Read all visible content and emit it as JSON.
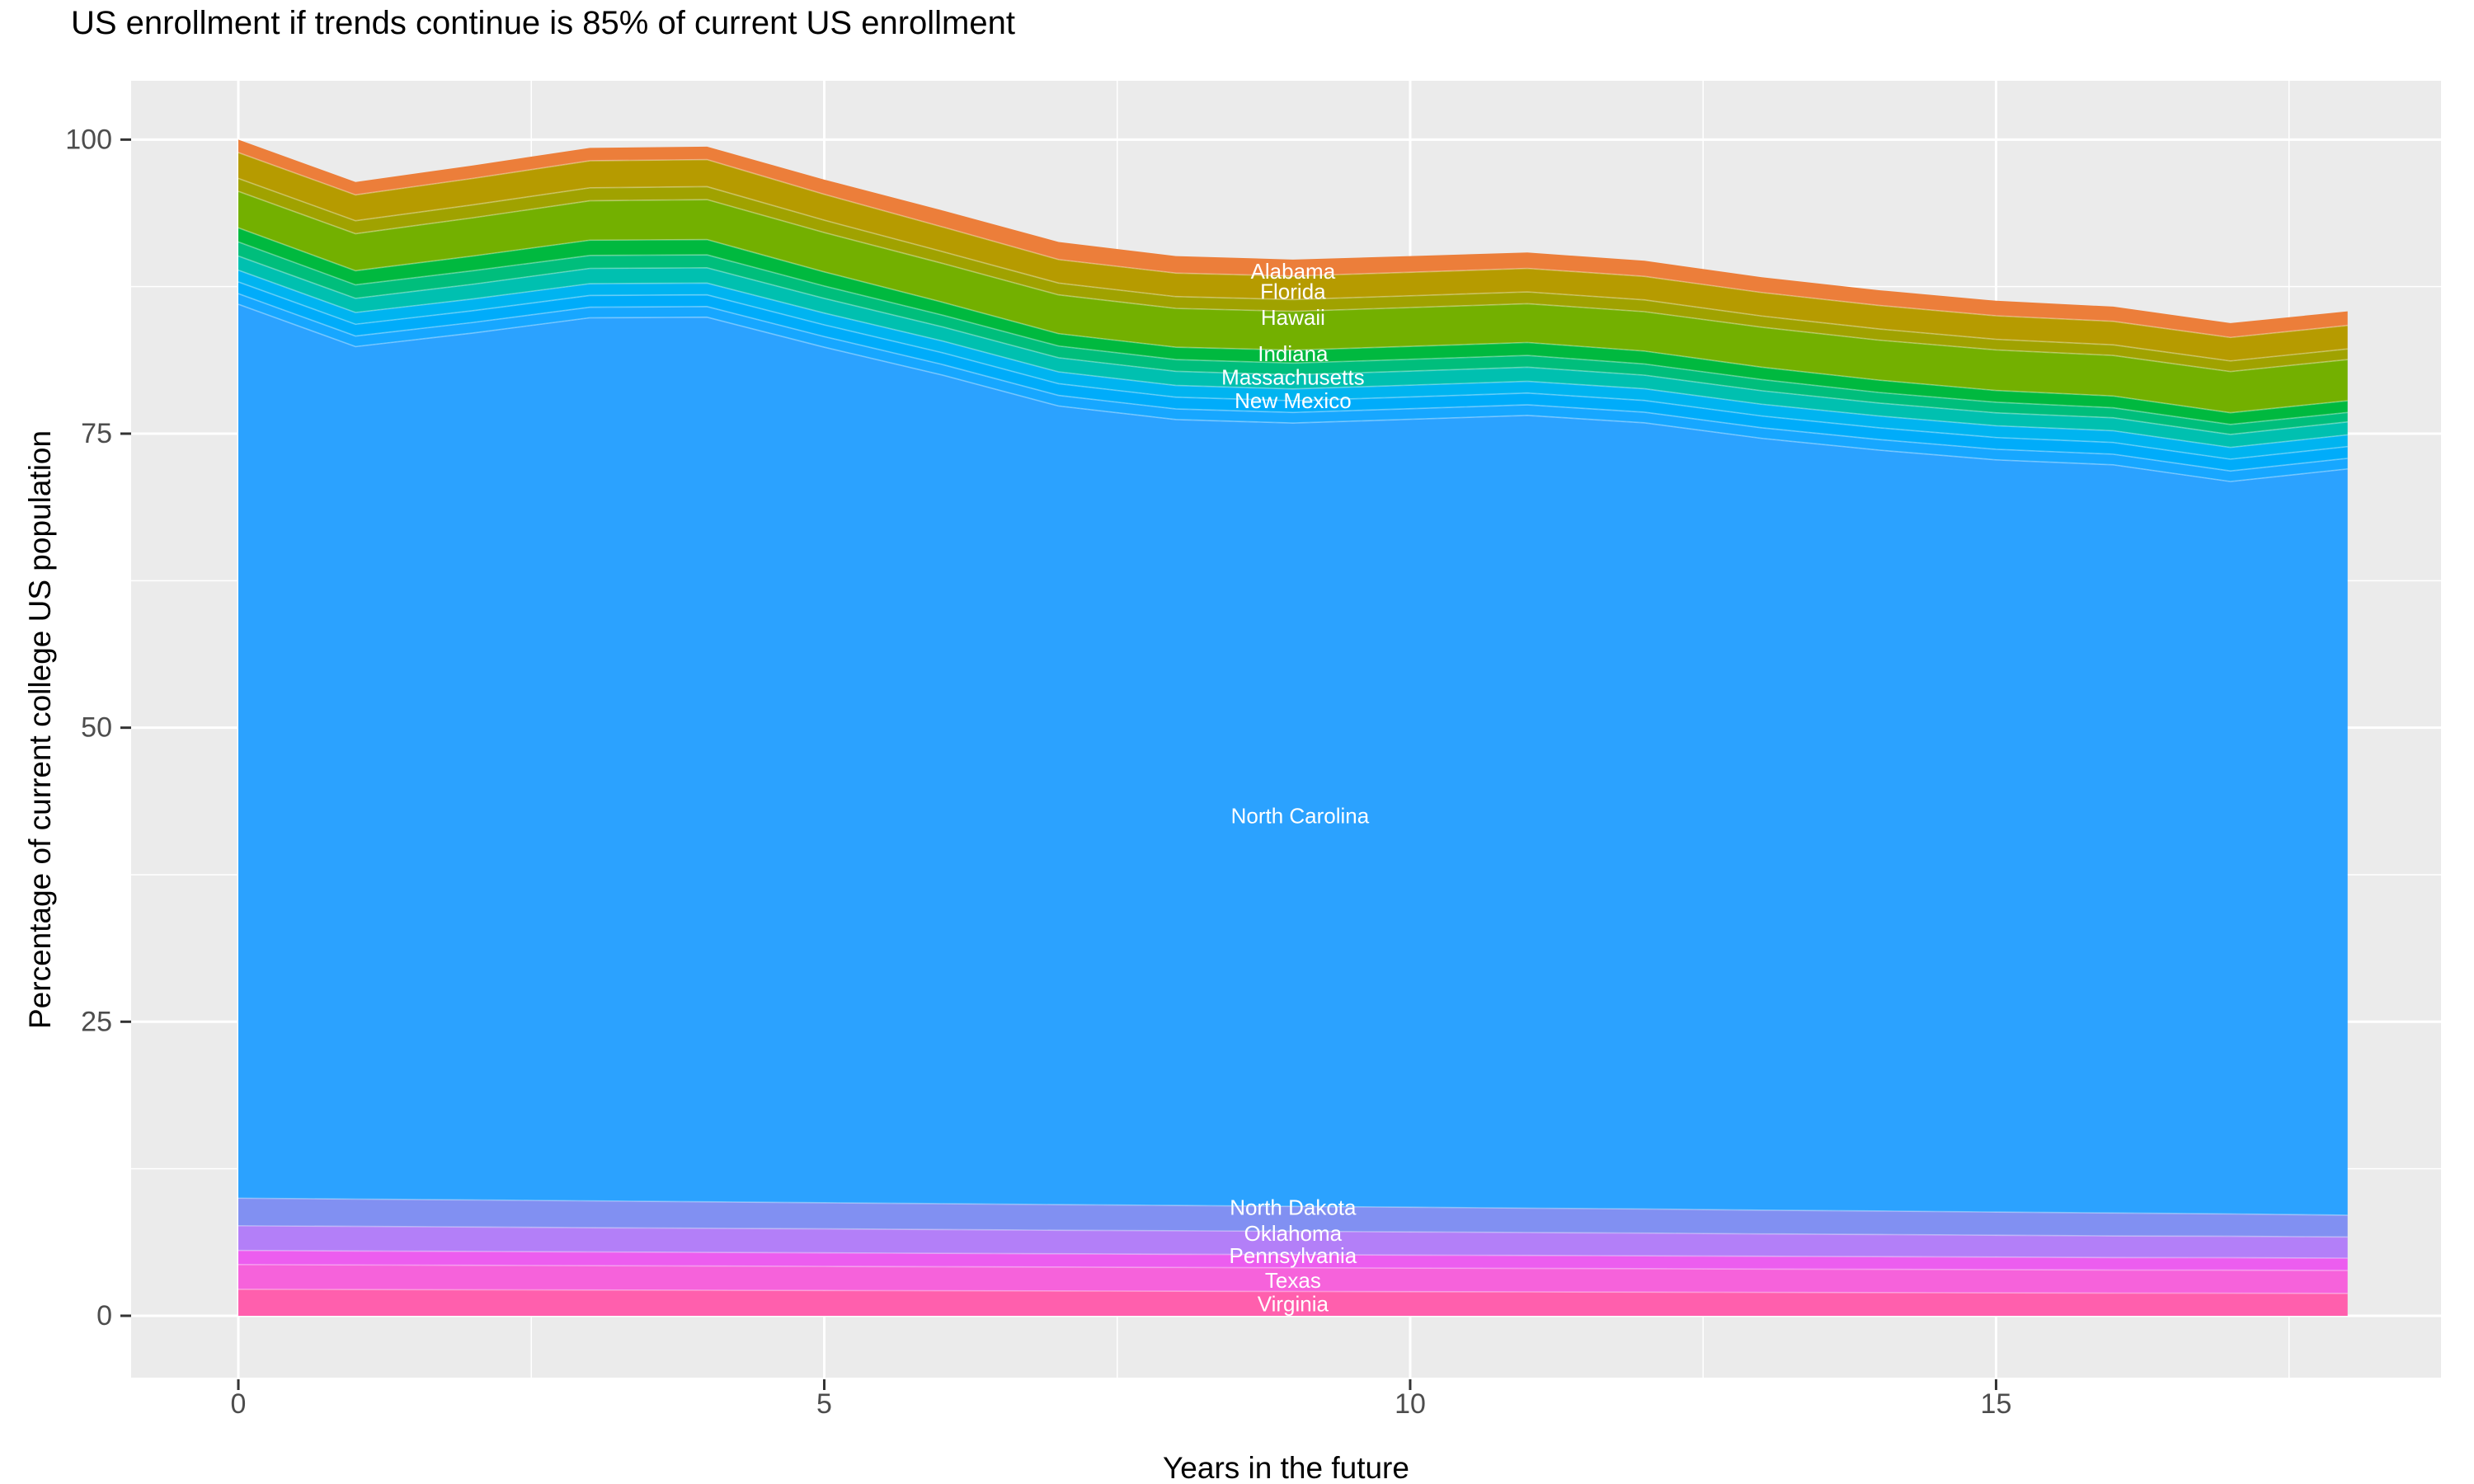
{
  "title": "US enrollment if trends continue is 85% of current US enrollment",
  "x_axis": {
    "title": "Years in the future",
    "ticks": [
      0,
      5,
      10,
      15
    ],
    "minor_ticks": [
      2.5,
      7.5,
      12.5,
      17.5
    ]
  },
  "y_axis": {
    "title": "Percentage of current college US population",
    "ticks": [
      0,
      25,
      50,
      75,
      100
    ],
    "minor_ticks": [
      12.5,
      37.5,
      62.5,
      87.5
    ]
  },
  "colors": {
    "panel_bg": "#EBEBEB",
    "grid": "#FFFFFF",
    "tick_mark": "#333333",
    "tick_label": "#4D4D4D",
    "title_text": "#000000",
    "band_label": "#FFFFFF"
  },
  "chart_data": {
    "type": "area",
    "stacked": true,
    "title": "US enrollment if trends continue is 85% of current US enrollment",
    "xlabel": "Years in the future",
    "ylabel": "Percentage of current college US population",
    "xlim": [
      -0.915,
      18.797
    ],
    "ylim": [
      -5.26,
      105.0
    ],
    "grid": true,
    "legend": "none (direct white labels inside bands)",
    "x": [
      0,
      1,
      2,
      3,
      4,
      5,
      6,
      7,
      8,
      9,
      10,
      11,
      12,
      13,
      14,
      15,
      16,
      17,
      18
    ],
    "series": [
      {
        "label": "Alabama",
        "color": "#EC7E3A",
        "label_pos": {
          "x": 9.0,
          "y": 88.8
        },
        "values": [
          1.1,
          1.1,
          1.1,
          1.1,
          1.1,
          1.25,
          1.4,
          1.5,
          1.45,
          1.4,
          1.38,
          1.35,
          1.33,
          1.3,
          1.3,
          1.28,
          1.25,
          1.22,
          1.2
        ]
      },
      {
        "label": "Florida",
        "color": "#B69B00",
        "label_pos": {
          "x": 9.0,
          "y": 87.1
        },
        "values": [
          2.2,
          2.2,
          2.25,
          2.3,
          2.3,
          2.2,
          2.1,
          2.0,
          2.0,
          2.0,
          2.0,
          2.0,
          2.0,
          2.0,
          2.0,
          2.0,
          2.0,
          2.0,
          2.0
        ]
      },
      {
        "label": "Hawaii",
        "color": "#A0A200",
        "label_pos": {
          "x": 9.0,
          "y": 84.9
        },
        "values": [
          1.1,
          1.1,
          1.1,
          1.1,
          1.1,
          1.05,
          1.0,
          1.0,
          1.0,
          1.0,
          1.0,
          1.0,
          1.0,
          0.95,
          0.95,
          0.9,
          0.9,
          0.9,
          0.9
        ]
      },
      {
        "label": "Indiana",
        "color": "#73B000",
        "label_pos": {
          "x": 9.0,
          "y": 81.8
        },
        "values": [
          3.1,
          3.15,
          3.25,
          3.35,
          3.4,
          3.35,
          3.3,
          3.3,
          3.3,
          3.3,
          3.3,
          3.3,
          3.35,
          3.4,
          3.4,
          3.45,
          3.45,
          3.5,
          3.5
        ]
      },
      {
        "label": "Massachusetts",
        "color": "#00B93F",
        "label_pos": {
          "x": 9.0,
          "y": 79.8
        },
        "values": [
          1.2,
          1.2,
          1.25,
          1.3,
          1.3,
          1.2,
          1.1,
          1.05,
          1.05,
          1.1,
          1.1,
          1.1,
          1.1,
          1.05,
          1.05,
          1.0,
          1.0,
          1.0,
          1.0
        ]
      },
      {
        "label": "",
        "color": "#00BE7C",
        "label_pos": null,
        "values": [
          1.2,
          1.15,
          1.15,
          1.1,
          1.1,
          1.05,
          1.0,
          1.0,
          1.0,
          1.0,
          1.0,
          1.0,
          0.95,
          0.95,
          0.9,
          0.9,
          0.85,
          0.85,
          0.8
        ]
      },
      {
        "label": "New Mexico",
        "color": "#00C0B0",
        "label_pos": {
          "x": 9.0,
          "y": 77.8
        },
        "values": [
          1.2,
          1.2,
          1.25,
          1.3,
          1.3,
          1.25,
          1.2,
          1.2,
          1.2,
          1.2,
          1.2,
          1.2,
          1.15,
          1.15,
          1.1,
          1.1,
          1.1,
          1.1,
          1.1
        ]
      },
      {
        "label": "",
        "color": "#00B4F0",
        "label_pos": null,
        "values": [
          1.0,
          1.0,
          1.0,
          1.0,
          1.0,
          1.0,
          1.0,
          1.0,
          1.0,
          1.0,
          1.0,
          1.0,
          1.0,
          1.0,
          1.0,
          1.0,
          1.0,
          1.0,
          1.0
        ]
      },
      {
        "label": "",
        "color": "#00ACFA",
        "label_pos": null,
        "values": [
          1.0,
          1.0,
          1.0,
          1.0,
          1.0,
          1.0,
          1.0,
          1.0,
          1.0,
          1.0,
          1.0,
          1.0,
          1.0,
          1.0,
          1.0,
          1.0,
          1.0,
          1.0,
          1.0
        ]
      },
      {
        "label": "",
        "color": "#17A7FF",
        "label_pos": null,
        "values": [
          0.9,
          0.9,
          0.9,
          0.9,
          0.9,
          0.9,
          0.9,
          0.9,
          0.9,
          0.9,
          0.9,
          0.9,
          0.9,
          0.9,
          0.9,
          0.9,
          0.9,
          0.9,
          0.9
        ]
      },
      {
        "label": "North Carolina",
        "color": "#2BA2FF",
        "label_pos": {
          "x": 9.06,
          "y": 42.5
        },
        "values": [
          76.0,
          72.48,
          73.7,
          75.08,
          75.21,
          72.74,
          70.47,
          67.9,
          66.82,
          66.6,
          66.99,
          67.4,
          66.84,
          65.62,
          64.69,
          63.95,
          63.61,
          62.27,
          63.45
        ]
      },
      {
        "label": "North Dakota",
        "color": "#8190F2",
        "label_pos": {
          "x": 9.0,
          "y": 9.2
        },
        "values": [
          2.35,
          2.32,
          2.3,
          2.28,
          2.25,
          2.22,
          2.2,
          2.18,
          2.15,
          2.12,
          2.1,
          2.07,
          2.05,
          2.02,
          2.0,
          1.97,
          1.95,
          1.9,
          1.85
        ]
      },
      {
        "label": "Oklahoma",
        "color": "#B37FF8",
        "label_pos": {
          "x": 9.0,
          "y": 7.0
        },
        "values": [
          2.1,
          2.09,
          2.08,
          2.06,
          2.05,
          2.04,
          2.02,
          2.0,
          2.0,
          1.98,
          1.97,
          1.95,
          1.93,
          1.9,
          1.88,
          1.86,
          1.84,
          1.82,
          1.8
        ]
      },
      {
        "label": "Pennsylvania",
        "color": "#EC5DEF",
        "label_pos": {
          "x": 9.0,
          "y": 5.1
        },
        "values": [
          1.2,
          1.19,
          1.18,
          1.17,
          1.16,
          1.15,
          1.14,
          1.13,
          1.12,
          1.12,
          1.11,
          1.1,
          1.1,
          1.09,
          1.08,
          1.07,
          1.06,
          1.06,
          1.05
        ]
      },
      {
        "label": "Texas",
        "color": "#F662DB",
        "label_pos": {
          "x": 9.0,
          "y": 3.0
        },
        "values": [
          2.1,
          2.09,
          2.08,
          2.07,
          2.06,
          2.05,
          2.04,
          2.03,
          2.02,
          2.01,
          2.0,
          2.0,
          1.99,
          1.98,
          1.98,
          1.97,
          1.96,
          1.96,
          1.95
        ]
      },
      {
        "label": "Virginia",
        "color": "#FF5FAD",
        "label_pos": {
          "x": 9.0,
          "y": 1.0
        },
        "values": [
          2.25,
          2.23,
          2.21,
          2.19,
          2.17,
          2.15,
          2.13,
          2.11,
          2.09,
          2.07,
          2.05,
          2.03,
          2.01,
          1.99,
          1.97,
          1.95,
          1.93,
          1.92,
          1.9
        ]
      }
    ]
  }
}
